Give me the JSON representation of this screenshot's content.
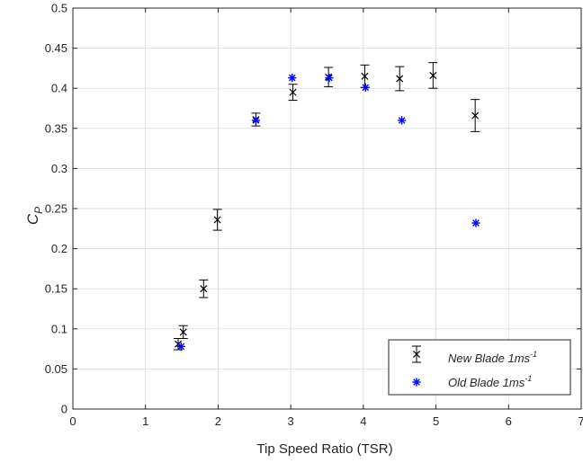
{
  "chart_data": {
    "type": "scatter",
    "xlabel": "Tip Speed Ratio (TSR)",
    "ylabel": {
      "main": "C",
      "sub": "P"
    },
    "xlim": [
      0,
      7
    ],
    "ylim": [
      0,
      0.5
    ],
    "xticks": [
      0,
      1,
      2,
      3,
      4,
      5,
      6,
      7
    ],
    "xtick_labels": [
      "0",
      "1",
      "2",
      "3",
      "4",
      "5",
      "6",
      "7"
    ],
    "yticks": [
      0,
      0.05,
      0.1,
      0.15,
      0.2,
      0.25,
      0.3,
      0.35,
      0.4,
      0.45,
      0.5
    ],
    "ytick_labels": [
      "0",
      "0.05",
      "0.1",
      "0.15",
      "0.2",
      "0.25",
      "0.3",
      "0.35",
      "0.4",
      "0.45",
      "0.5"
    ],
    "grid": true,
    "legend_position": "bottom-right",
    "series": [
      {
        "name": "New Blade 1ms",
        "name_sup": "-1",
        "marker": "x",
        "color": "#000000",
        "error_bars": true,
        "points": [
          {
            "x": 1.45,
            "y": 0.081,
            "err": 0.007
          },
          {
            "x": 1.52,
            "y": 0.096,
            "err": 0.008
          },
          {
            "x": 1.8,
            "y": 0.15,
            "err": 0.011
          },
          {
            "x": 1.99,
            "y": 0.236,
            "err": 0.013
          },
          {
            "x": 2.52,
            "y": 0.361,
            "err": 0.008
          },
          {
            "x": 3.03,
            "y": 0.395,
            "err": 0.01
          },
          {
            "x": 3.52,
            "y": 0.414,
            "err": 0.012
          },
          {
            "x": 4.02,
            "y": 0.415,
            "err": 0.014
          },
          {
            "x": 4.5,
            "y": 0.412,
            "err": 0.015
          },
          {
            "x": 4.96,
            "y": 0.416,
            "err": 0.016
          },
          {
            "x": 5.54,
            "y": 0.366,
            "err": 0.02
          }
        ]
      },
      {
        "name": "Old Blade 1ms",
        "name_sup": "-1",
        "marker": "asterisk",
        "color": "#0000ff",
        "error_bars": false,
        "points": [
          {
            "x": 1.49,
            "y": 0.078
          },
          {
            "x": 2.52,
            "y": 0.36
          },
          {
            "x": 3.02,
            "y": 0.413
          },
          {
            "x": 3.53,
            "y": 0.413
          },
          {
            "x": 4.03,
            "y": 0.401
          },
          {
            "x": 4.53,
            "y": 0.36
          },
          {
            "x": 5.55,
            "y": 0.232
          }
        ]
      }
    ]
  }
}
